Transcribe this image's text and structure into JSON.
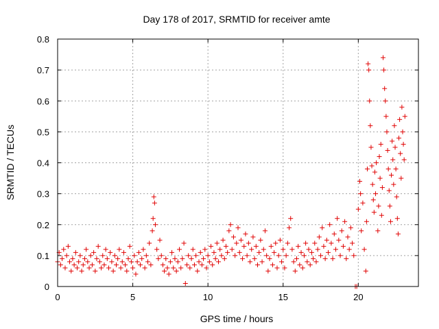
{
  "chart_data": {
    "type": "scatter",
    "title": "Day 178 of 2017, SRMTID for receiver amte",
    "xlabel": "GPS time / hours",
    "ylabel": "SRMTID / TECUs",
    "xlim": [
      0,
      24
    ],
    "ylim": [
      0,
      0.8
    ],
    "xticks": [
      0,
      5,
      10,
      15,
      20
    ],
    "yticks": [
      0,
      0.1,
      0.2,
      0.3,
      0.4,
      0.5,
      0.6,
      0.7,
      0.8
    ],
    "xtick_labels": [
      "0",
      "5",
      "10",
      "15",
      "20"
    ],
    "ytick_labels": [
      "0",
      "0.1",
      "0.2",
      "0.3",
      "0.4",
      "0.5",
      "0.6",
      "0.7",
      "0.8"
    ],
    "grid": true,
    "marker": "+",
    "color": "#e00000",
    "series": [
      {
        "name": "SRMTID",
        "points": [
          [
            0.0,
            0.08
          ],
          [
            0.1,
            0.11
          ],
          [
            0.2,
            0.07
          ],
          [
            0.3,
            0.09
          ],
          [
            0.4,
            0.12
          ],
          [
            0.5,
            0.06
          ],
          [
            0.6,
            0.1
          ],
          [
            0.7,
            0.13
          ],
          [
            0.8,
            0.08
          ],
          [
            0.9,
            0.05
          ],
          [
            1.0,
            0.09
          ],
          [
            1.1,
            0.07
          ],
          [
            1.2,
            0.11
          ],
          [
            1.3,
            0.06
          ],
          [
            1.4,
            0.08
          ],
          [
            1.5,
            0.1
          ],
          [
            1.6,
            0.05
          ],
          [
            1.7,
            0.07
          ],
          [
            1.8,
            0.09
          ],
          [
            1.9,
            0.12
          ],
          [
            2.0,
            0.08
          ],
          [
            2.1,
            0.06
          ],
          [
            2.2,
            0.1
          ],
          [
            2.3,
            0.07
          ],
          [
            2.4,
            0.11
          ],
          [
            2.5,
            0.05
          ],
          [
            2.6,
            0.09
          ],
          [
            2.7,
            0.13
          ],
          [
            2.8,
            0.08
          ],
          [
            2.9,
            0.06
          ],
          [
            3.0,
            0.1
          ],
          [
            3.1,
            0.07
          ],
          [
            3.2,
            0.12
          ],
          [
            3.3,
            0.09
          ],
          [
            3.4,
            0.06
          ],
          [
            3.5,
            0.11
          ],
          [
            3.6,
            0.08
          ],
          [
            3.7,
            0.05
          ],
          [
            3.8,
            0.1
          ],
          [
            3.9,
            0.07
          ],
          [
            4.0,
            0.09
          ],
          [
            4.1,
            0.12
          ],
          [
            4.2,
            0.06
          ],
          [
            4.3,
            0.08
          ],
          [
            4.4,
            0.11
          ],
          [
            4.5,
            0.07
          ],
          [
            4.6,
            0.05
          ],
          [
            4.7,
            0.09
          ],
          [
            4.8,
            0.13
          ],
          [
            4.9,
            0.08
          ],
          [
            5.0,
            0.06
          ],
          [
            5.1,
            0.1
          ],
          [
            5.2,
            0.04
          ],
          [
            5.3,
            0.08
          ],
          [
            5.4,
            0.11
          ],
          [
            5.5,
            0.07
          ],
          [
            5.6,
            0.09
          ],
          [
            5.7,
            0.12
          ],
          [
            5.8,
            0.06
          ],
          [
            5.9,
            0.1
          ],
          [
            6.0,
            0.08
          ],
          [
            6.1,
            0.14
          ],
          [
            6.2,
            0.07
          ],
          [
            6.3,
            0.18
          ],
          [
            6.35,
            0.22
          ],
          [
            6.4,
            0.29
          ],
          [
            6.45,
            0.27
          ],
          [
            6.5,
            0.2
          ],
          [
            6.6,
            0.12
          ],
          [
            6.7,
            0.09
          ],
          [
            6.8,
            0.15
          ],
          [
            6.9,
            0.1
          ],
          [
            7.0,
            0.07
          ],
          [
            7.1,
            0.05
          ],
          [
            7.2,
            0.09
          ],
          [
            7.3,
            0.06
          ],
          [
            7.4,
            0.04
          ],
          [
            7.5,
            0.08
          ],
          [
            7.6,
            0.11
          ],
          [
            7.7,
            0.06
          ],
          [
            7.8,
            0.09
          ],
          [
            7.9,
            0.05
          ],
          [
            8.0,
            0.08
          ],
          [
            8.1,
            0.12
          ],
          [
            8.2,
            0.06
          ],
          [
            8.3,
            0.09
          ],
          [
            8.4,
            0.14
          ],
          [
            8.5,
            0.01
          ],
          [
            8.6,
            0.07
          ],
          [
            8.7,
            0.1
          ],
          [
            8.8,
            0.06
          ],
          [
            8.9,
            0.09
          ],
          [
            9.0,
            0.12
          ],
          [
            9.1,
            0.07
          ],
          [
            9.2,
            0.1
          ],
          [
            9.3,
            0.05
          ],
          [
            9.4,
            0.08
          ],
          [
            9.5,
            0.11
          ],
          [
            9.6,
            0.07
          ],
          [
            9.7,
            0.09
          ],
          [
            9.8,
            0.12
          ],
          [
            9.9,
            0.06
          ],
          [
            10.0,
            0.1
          ],
          [
            10.1,
            0.08
          ],
          [
            10.2,
            0.13
          ],
          [
            10.3,
            0.07
          ],
          [
            10.4,
            0.11
          ],
          [
            10.5,
            0.09
          ],
          [
            10.6,
            0.14
          ],
          [
            10.7,
            0.08
          ],
          [
            10.8,
            0.12
          ],
          [
            10.9,
            0.1
          ],
          [
            11.0,
            0.15
          ],
          [
            11.1,
            0.09
          ],
          [
            11.2,
            0.13
          ],
          [
            11.3,
            0.11
          ],
          [
            11.4,
            0.18
          ],
          [
            11.5,
            0.2
          ],
          [
            11.6,
            0.12
          ],
          [
            11.7,
            0.16
          ],
          [
            11.8,
            0.1
          ],
          [
            11.9,
            0.14
          ],
          [
            12.0,
            0.19
          ],
          [
            12.1,
            0.11
          ],
          [
            12.2,
            0.15
          ],
          [
            12.3,
            0.09
          ],
          [
            12.4,
            0.13
          ],
          [
            12.5,
            0.17
          ],
          [
            12.6,
            0.1
          ],
          [
            12.7,
            0.14
          ],
          [
            12.8,
            0.08
          ],
          [
            12.9,
            0.12
          ],
          [
            13.0,
            0.16
          ],
          [
            13.1,
            0.09
          ],
          [
            13.2,
            0.13
          ],
          [
            13.3,
            0.07
          ],
          [
            13.4,
            0.11
          ],
          [
            13.5,
            0.15
          ],
          [
            13.6,
            0.08
          ],
          [
            13.7,
            0.12
          ],
          [
            13.8,
            0.18
          ],
          [
            13.9,
            0.1
          ],
          [
            14.0,
            0.05
          ],
          [
            14.1,
            0.09
          ],
          [
            14.2,
            0.13
          ],
          [
            14.3,
            0.07
          ],
          [
            14.4,
            0.11
          ],
          [
            14.5,
            0.14
          ],
          [
            14.6,
            0.06
          ],
          [
            14.7,
            0.1
          ],
          [
            14.8,
            0.15
          ],
          [
            14.9,
            0.08
          ],
          [
            15.0,
            0.12
          ],
          [
            15.1,
            0.06
          ],
          [
            15.2,
            0.1
          ],
          [
            15.3,
            0.14
          ],
          [
            15.4,
            0.19
          ],
          [
            15.5,
            0.22
          ],
          [
            15.6,
            0.12
          ],
          [
            15.7,
            0.08
          ],
          [
            15.8,
            0.05
          ],
          [
            15.9,
            0.09
          ],
          [
            16.0,
            0.13
          ],
          [
            16.1,
            0.07
          ],
          [
            16.2,
            0.11
          ],
          [
            16.3,
            0.06
          ],
          [
            16.4,
            0.1
          ],
          [
            16.5,
            0.14
          ],
          [
            16.6,
            0.08
          ],
          [
            16.7,
            0.12
          ],
          [
            16.8,
            0.07
          ],
          [
            16.9,
            0.11
          ],
          [
            17.0,
            0.09
          ],
          [
            17.1,
            0.14
          ],
          [
            17.2,
            0.08
          ],
          [
            17.3,
            0.12
          ],
          [
            17.4,
            0.16
          ],
          [
            17.5,
            0.1
          ],
          [
            17.6,
            0.19
          ],
          [
            17.7,
            0.13
          ],
          [
            17.8,
            0.09
          ],
          [
            17.9,
            0.15
          ],
          [
            18.0,
            0.11
          ],
          [
            18.1,
            0.2
          ],
          [
            18.2,
            0.14
          ],
          [
            18.3,
            0.09
          ],
          [
            18.4,
            0.17
          ],
          [
            18.5,
            0.12
          ],
          [
            18.6,
            0.22
          ],
          [
            18.7,
            0.15
          ],
          [
            18.8,
            0.1
          ],
          [
            18.9,
            0.18
          ],
          [
            19.0,
            0.13
          ],
          [
            19.1,
            0.21
          ],
          [
            19.2,
            0.09
          ],
          [
            19.3,
            0.16
          ],
          [
            19.4,
            0.12
          ],
          [
            19.5,
            0.19
          ],
          [
            19.6,
            0.14
          ],
          [
            19.7,
            0.1
          ],
          [
            19.8,
            0.0
          ],
          [
            19.9,
            0.0
          ],
          [
            20.0,
            0.25
          ],
          [
            20.1,
            0.34
          ],
          [
            20.15,
            0.3
          ],
          [
            20.2,
            0.18
          ],
          [
            20.3,
            0.27
          ],
          [
            20.4,
            0.12
          ],
          [
            20.5,
            0.05
          ],
          [
            20.55,
            0.21
          ],
          [
            20.6,
            0.38
          ],
          [
            20.65,
            0.72
          ],
          [
            20.7,
            0.7
          ],
          [
            20.75,
            0.6
          ],
          [
            20.8,
            0.52
          ],
          [
            20.85,
            0.45
          ],
          [
            20.9,
            0.39
          ],
          [
            20.95,
            0.33
          ],
          [
            21.0,
            0.28
          ],
          [
            21.05,
            0.24
          ],
          [
            21.1,
            0.37
          ],
          [
            21.15,
            0.3
          ],
          [
            21.2,
            0.4
          ],
          [
            21.3,
            0.18
          ],
          [
            21.35,
            0.26
          ],
          [
            21.4,
            0.42
          ],
          [
            21.45,
            0.35
          ],
          [
            21.5,
            0.46
          ],
          [
            21.55,
            0.23
          ],
          [
            21.6,
            0.32
          ],
          [
            21.65,
            0.74
          ],
          [
            21.7,
            0.7
          ],
          [
            21.75,
            0.64
          ],
          [
            21.8,
            0.6
          ],
          [
            21.85,
            0.55
          ],
          [
            21.9,
            0.5
          ],
          [
            21.95,
            0.44
          ],
          [
            22.0,
            0.38
          ],
          [
            22.05,
            0.31
          ],
          [
            22.1,
            0.26
          ],
          [
            22.15,
            0.21
          ],
          [
            22.2,
            0.36
          ],
          [
            22.25,
            0.47
          ],
          [
            22.3,
            0.41
          ],
          [
            22.35,
            0.33
          ],
          [
            22.4,
            0.52
          ],
          [
            22.45,
            0.45
          ],
          [
            22.5,
            0.38
          ],
          [
            22.55,
            0.29
          ],
          [
            22.6,
            0.22
          ],
          [
            22.65,
            0.17
          ],
          [
            22.7,
            0.48
          ],
          [
            22.75,
            0.54
          ],
          [
            22.8,
            0.43
          ],
          [
            22.85,
            0.35
          ],
          [
            22.9,
            0.58
          ],
          [
            22.95,
            0.5
          ],
          [
            23.0,
            0.46
          ],
          [
            23.05,
            0.41
          ],
          [
            23.1,
            0.55
          ]
        ]
      }
    ]
  }
}
